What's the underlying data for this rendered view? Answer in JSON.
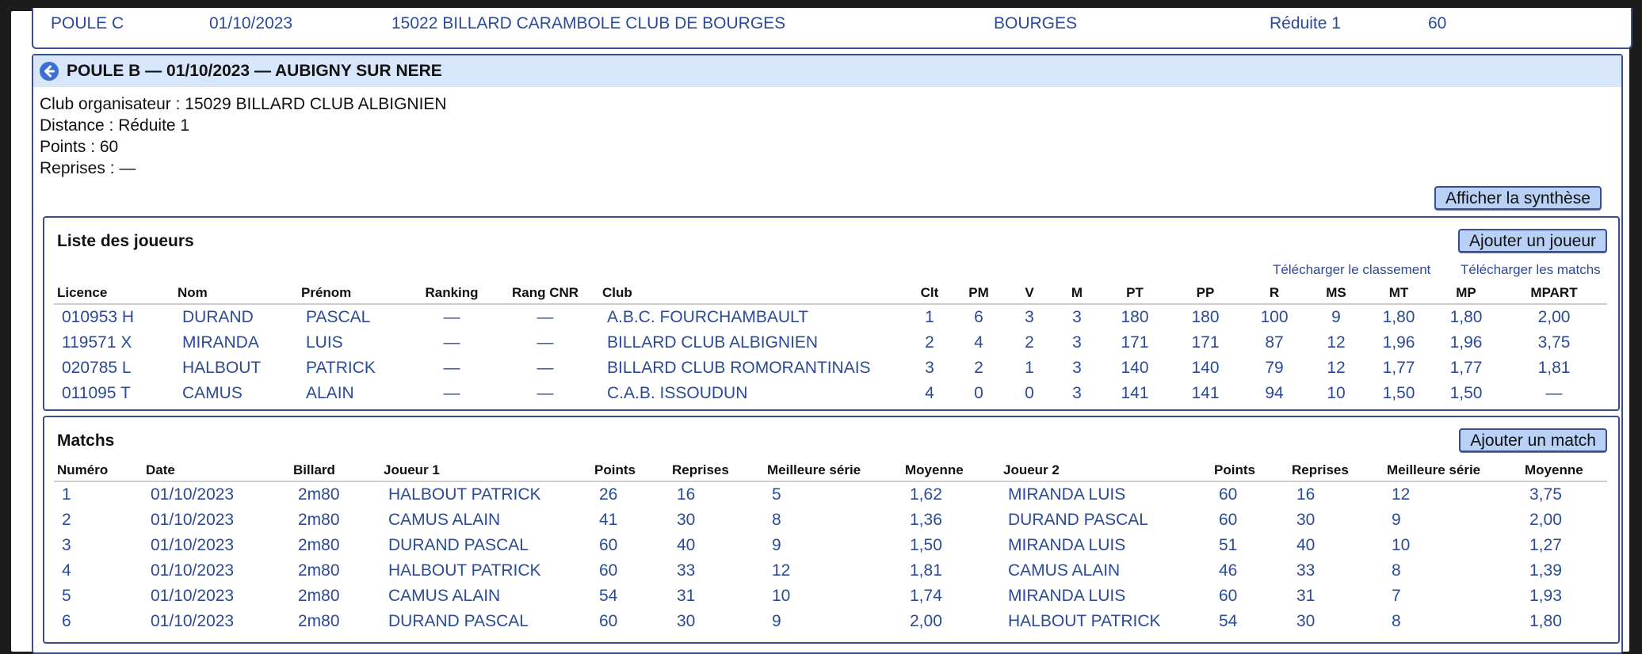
{
  "prev_row": {
    "poule": "POULE C",
    "date": "01/10/2023",
    "club": "15022 BILLARD CARAMBOLE CLUB DE BOURGES",
    "city": "BOURGES",
    "distance": "Réduite 1",
    "points": "60"
  },
  "poule": {
    "title": "POULE B — 01/10/2023 — AUBIGNY SUR NERE",
    "club_line": "Club organisateur : 15029 BILLARD CLUB ALBIGNIEN",
    "distance_line": "Distance : Réduite 1",
    "points_line": "Points : 60",
    "reprises_line": "Reprises : —",
    "synth_button": "Afficher la synthèse"
  },
  "players": {
    "title": "Liste des joueurs",
    "add_button": "Ajouter un joueur",
    "download_ranking": "Télécharger le classement",
    "download_matchs": "Télécharger les matchs",
    "columns": [
      "Licence",
      "Nom",
      "Prénom",
      "Ranking",
      "Rang CNR",
      "Club",
      "Clt",
      "PM",
      "V",
      "M",
      "PT",
      "PP",
      "R",
      "MS",
      "MT",
      "MP",
      "MPART"
    ],
    "rows": [
      [
        "010953 H",
        "DURAND",
        "PASCAL",
        "—",
        "—",
        "A.B.C. FOURCHAMBAULT",
        "1",
        "6",
        "3",
        "3",
        "180",
        "180",
        "100",
        "9",
        "1,80",
        "1,80",
        "2,00"
      ],
      [
        "119571 X",
        "MIRANDA",
        "LUIS",
        "—",
        "—",
        "BILLARD CLUB ALBIGNIEN",
        "2",
        "4",
        "2",
        "3",
        "171",
        "171",
        "87",
        "12",
        "1,96",
        "1,96",
        "3,75"
      ],
      [
        "020785 L",
        "HALBOUT",
        "PATRICK",
        "—",
        "—",
        "BILLARD CLUB ROMORANTINAIS",
        "3",
        "2",
        "1",
        "3",
        "140",
        "140",
        "79",
        "12",
        "1,77",
        "1,77",
        "1,81"
      ],
      [
        "011095 T",
        "CAMUS",
        "ALAIN",
        "—",
        "—",
        "C.A.B. ISSOUDUN",
        "4",
        "0",
        "0",
        "3",
        "141",
        "141",
        "94",
        "10",
        "1,50",
        "1,50",
        "—"
      ]
    ]
  },
  "matchs": {
    "title": "Matchs",
    "add_button": "Ajouter un match",
    "columns": [
      "Numéro",
      "Date",
      "Billard",
      "Joueur 1",
      "Points",
      "Reprises",
      "Meilleure série",
      "Moyenne",
      "Joueur 2",
      "Points",
      "Reprises",
      "Meilleure série",
      "Moyenne"
    ],
    "rows": [
      [
        "1",
        "01/10/2023",
        "2m80",
        "HALBOUT PATRICK",
        "26",
        "16",
        "5",
        "1,62",
        "MIRANDA LUIS",
        "60",
        "16",
        "12",
        "3,75"
      ],
      [
        "2",
        "01/10/2023",
        "2m80",
        "CAMUS ALAIN",
        "41",
        "30",
        "8",
        "1,36",
        "DURAND PASCAL",
        "60",
        "30",
        "9",
        "2,00"
      ],
      [
        "3",
        "01/10/2023",
        "2m80",
        "DURAND PASCAL",
        "60",
        "40",
        "9",
        "1,50",
        "MIRANDA LUIS",
        "51",
        "40",
        "10",
        "1,27"
      ],
      [
        "4",
        "01/10/2023",
        "2m80",
        "HALBOUT PATRICK",
        "60",
        "33",
        "12",
        "1,81",
        "CAMUS ALAIN",
        "46",
        "33",
        "8",
        "1,39"
      ],
      [
        "5",
        "01/10/2023",
        "2m80",
        "CAMUS ALAIN",
        "54",
        "31",
        "10",
        "1,74",
        "MIRANDA LUIS",
        "60",
        "31",
        "7",
        "1,93"
      ],
      [
        "6",
        "01/10/2023",
        "2m80",
        "DURAND PASCAL",
        "60",
        "30",
        "9",
        "2,00",
        "HALBOUT PATRICK",
        "54",
        "30",
        "8",
        "1,80"
      ]
    ]
  },
  "colors": {
    "accent": "#2b4a9a",
    "header_bg": "#d8e6fb",
    "button_bg": "#b9d0f7",
    "border": "#3a4f8a"
  }
}
